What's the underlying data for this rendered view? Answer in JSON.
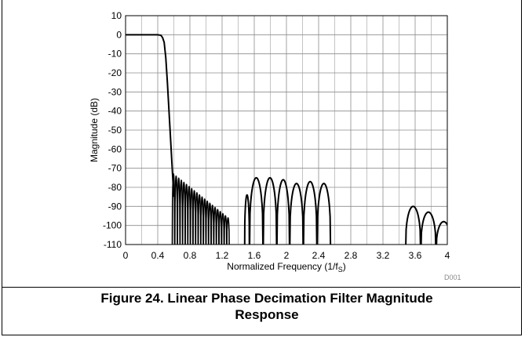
{
  "chart_data": {
    "type": "line",
    "title": "",
    "xlabel": "Normalized Frequency (1/f",
    "xlabel_sub": "S",
    "xlabel_suffix": ")",
    "ylabel": "Magnitude (dB)",
    "xlim": [
      0,
      4
    ],
    "ylim": [
      -110,
      10
    ],
    "xticks": [
      0,
      0.4,
      0.8,
      1.2,
      1.6,
      2,
      2.4,
      2.8,
      3.2,
      3.6,
      4
    ],
    "xtick_labels": [
      "0",
      "0.4",
      "0.8",
      "1.2",
      "1.6",
      "2",
      "2.4",
      "2.8",
      "3.2",
      "3.6",
      "4"
    ],
    "yticks": [
      10,
      0,
      -10,
      -20,
      -30,
      -40,
      -50,
      -60,
      -70,
      -80,
      -90,
      -100,
      -110
    ],
    "ytick_labels": [
      "10",
      "0",
      "-10",
      "-20",
      "-30",
      "-40",
      "-50",
      "-60",
      "-70",
      "-80",
      "-90",
      "-100",
      "-110"
    ],
    "x_minor_per_major": 2,
    "y_minor_per_major": 1,
    "grid": true,
    "series_color": "#000000",
    "passband": {
      "x": [
        0,
        0.4,
        0.44,
        0.46,
        0.48
      ],
      "y": [
        0,
        0,
        -0.3,
        -1.5,
        -4
      ]
    },
    "transition": {
      "x": [
        0.48,
        0.5,
        0.52,
        0.54,
        0.56,
        0.58,
        0.6
      ],
      "y": [
        -4,
        -12,
        -25,
        -40,
        -55,
        -70,
        -85
      ]
    },
    "stopband_lobes_near": {
      "x_start": 0.58,
      "x_end": 1.29,
      "count": 22,
      "peak_db_start": -73,
      "peak_db_end": -96
    },
    "stopband_lobes_far": [
      {
        "x0": 1.48,
        "x1": 1.54,
        "peak": -84
      },
      {
        "x0": 1.54,
        "x1": 1.71,
        "peak": -75
      },
      {
        "x0": 1.71,
        "x1": 1.88,
        "peak": -75
      },
      {
        "x0": 1.88,
        "x1": 2.04,
        "peak": -76
      },
      {
        "x0": 2.04,
        "x1": 2.21,
        "peak": -78
      },
      {
        "x0": 2.21,
        "x1": 2.38,
        "peak": -77
      },
      {
        "x0": 2.38,
        "x1": 2.55,
        "peak": -78
      },
      {
        "x0": 3.48,
        "x1": 3.67,
        "peak": -90
      },
      {
        "x0": 3.67,
        "x1": 3.86,
        "peak": -93
      },
      {
        "x0": 3.86,
        "x1": 4.05,
        "peak": -98
      }
    ]
  },
  "figure": {
    "caption_line1": "Figure 24. Linear Phase Decimation Filter Magnitude",
    "caption_line2": "Response",
    "code": "D001"
  }
}
